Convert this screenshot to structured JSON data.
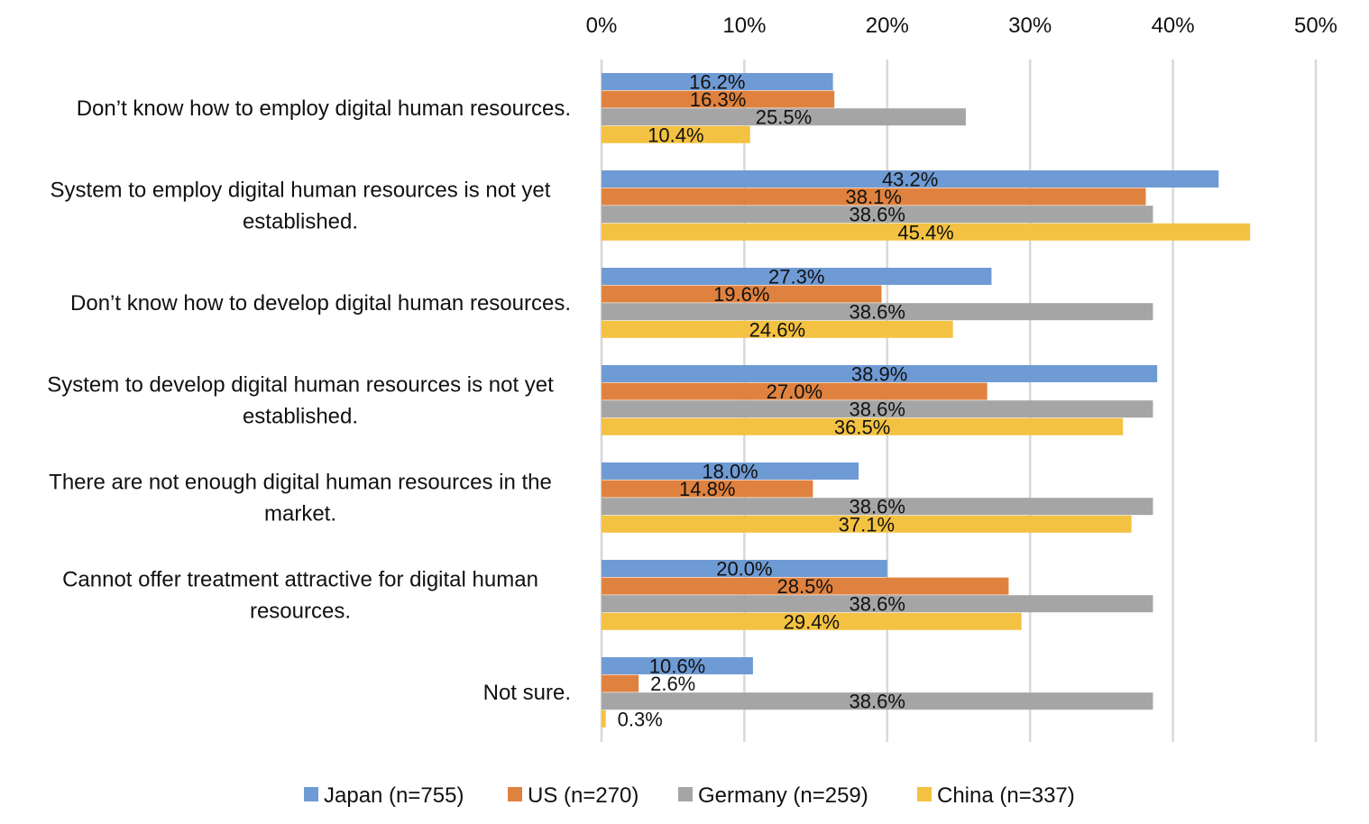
{
  "chart_data": {
    "type": "bar",
    "orientation": "horizontal",
    "title": "",
    "xlabel": "",
    "ylabel": "",
    "xlim": [
      0,
      50
    ],
    "x_ticks": [
      "0%",
      "10%",
      "20%",
      "30%",
      "40%",
      "50%"
    ],
    "x_tick_values": [
      0,
      10,
      20,
      30,
      40,
      50
    ],
    "x_axis_position": "top",
    "grid": true,
    "legend_position": "bottom",
    "categories": [
      [
        "Don’t know how to employ digital human resources."
      ],
      [
        "System to employ digital human resources is not yet",
        "established."
      ],
      [
        "Don’t know how to develop digital human resources."
      ],
      [
        "System to develop digital human resources is not yet",
        "established."
      ],
      [
        "There are not enough digital human resources in the",
        "market."
      ],
      [
        "Cannot offer treatment attractive for digital human",
        "resources."
      ],
      [
        "Not sure."
      ]
    ],
    "series": [
      {
        "name": "Japan (n=755)",
        "color": "#6f9bd4",
        "values": [
          16.2,
          43.2,
          27.3,
          38.9,
          18.0,
          20.0,
          10.6
        ],
        "labels": [
          "16.2%",
          "43.2%",
          "27.3%",
          "38.9%",
          "18.0%",
          "20.0%",
          "10.6%"
        ]
      },
      {
        "name": "US (n=270)",
        "color": "#e0823f",
        "values": [
          16.3,
          38.1,
          19.6,
          27.0,
          14.8,
          28.5,
          2.6
        ],
        "labels": [
          "16.3%",
          "38.1%",
          "19.6%",
          "27.0%",
          "14.8%",
          "28.5%",
          "2.6%"
        ]
      },
      {
        "name": "Germany (n=259)",
        "color": "#a5a5a5",
        "values": [
          25.5,
          38.6,
          38.6,
          38.6,
          38.6,
          38.6,
          38.6
        ],
        "labels": [
          "25.5%",
          "38.6%",
          "38.6%",
          "38.6%",
          "38.6%",
          "38.6%",
          "38.6%"
        ]
      },
      {
        "name": "China (n=337)",
        "color": "#f4c242",
        "values": [
          10.4,
          45.4,
          24.6,
          36.5,
          37.1,
          29.4,
          0.3
        ],
        "labels": [
          "10.4%",
          "45.4%",
          "24.6%",
          "36.5%",
          "37.1%",
          "29.4%",
          "0.3%"
        ]
      }
    ]
  }
}
